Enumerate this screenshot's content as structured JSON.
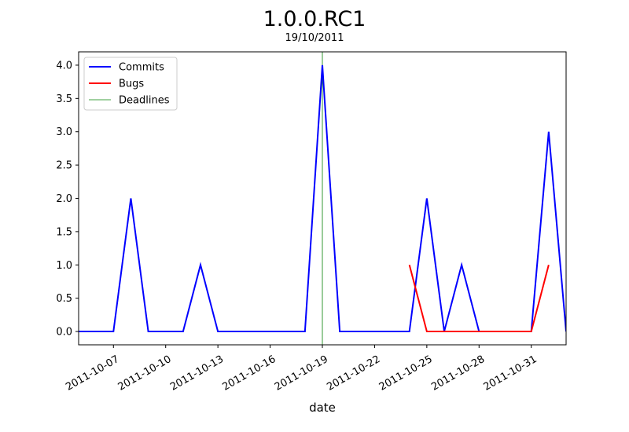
{
  "chart_data": {
    "type": "line",
    "title": "1.0.0.RC1",
    "subtitle": "19/10/2011",
    "xlabel": "date",
    "ylabel": "",
    "xlim": [
      "2011-10-05",
      "2011-11-02"
    ],
    "ylim": [
      -0.2,
      4.2
    ],
    "x_ticks": [
      "2011-10-07",
      "2011-10-10",
      "2011-10-13",
      "2011-10-16",
      "2011-10-19",
      "2011-10-22",
      "2011-10-25",
      "2011-10-28",
      "2011-10-31"
    ],
    "y_ticks": [
      "0.0",
      "0.5",
      "1.0",
      "1.5",
      "2.0",
      "2.5",
      "3.0",
      "3.5",
      "4.0"
    ],
    "legend_position": "top-left",
    "grid": false,
    "series": [
      {
        "name": "Commits",
        "color": "#0000ff",
        "points": [
          [
            "2011-10-05",
            0
          ],
          [
            "2011-10-06",
            0
          ],
          [
            "2011-10-07",
            0
          ],
          [
            "2011-10-08",
            2
          ],
          [
            "2011-10-09",
            0
          ],
          [
            "2011-10-10",
            0
          ],
          [
            "2011-10-11",
            0
          ],
          [
            "2011-10-12",
            1
          ],
          [
            "2011-10-13",
            0
          ],
          [
            "2011-10-14",
            0
          ],
          [
            "2011-10-15",
            0
          ],
          [
            "2011-10-16",
            0
          ],
          [
            "2011-10-17",
            0
          ],
          [
            "2011-10-18",
            0
          ],
          [
            "2011-10-19",
            4
          ],
          [
            "2011-10-20",
            0
          ],
          [
            "2011-10-21",
            0
          ],
          [
            "2011-10-22",
            0
          ],
          [
            "2011-10-23",
            0
          ],
          [
            "2011-10-24",
            0
          ],
          [
            "2011-10-25",
            2
          ],
          [
            "2011-10-26",
            0
          ],
          [
            "2011-10-27",
            1
          ],
          [
            "2011-10-28",
            0
          ],
          [
            "2011-10-29",
            0
          ],
          [
            "2011-10-30",
            0
          ],
          [
            "2011-10-31",
            0
          ],
          [
            "2011-11-01",
            3
          ],
          [
            "2011-11-02",
            0
          ]
        ]
      },
      {
        "name": "Bugs",
        "color": "#ff0000",
        "points": [
          [
            "2011-10-24",
            1
          ],
          [
            "2011-10-25",
            0
          ],
          [
            "2011-10-26",
            0
          ],
          [
            "2011-10-27",
            0
          ],
          [
            "2011-10-28",
            0
          ],
          [
            "2011-10-29",
            0
          ],
          [
            "2011-10-30",
            0
          ],
          [
            "2011-10-31",
            0
          ],
          [
            "2011-11-01",
            1
          ]
        ]
      }
    ],
    "deadlines": {
      "name": "Deadlines",
      "color": "#008000",
      "dates": [
        "2011-10-19"
      ]
    }
  }
}
